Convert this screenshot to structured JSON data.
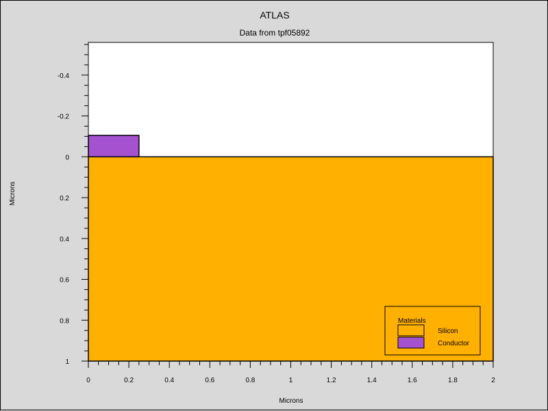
{
  "chart_data": {
    "type": "heatmap",
    "title": "ATLAS",
    "subtitle": "Data from tpf05892",
    "xlabel": "Microns",
    "ylabel": "Microns",
    "xlim": [
      0,
      2
    ],
    "ylim": [
      -0.56,
      1
    ],
    "y_inverted": true,
    "x_ticks": [
      "0",
      "0.2",
      "0.4",
      "0.6",
      "0.8",
      "1",
      "1.2",
      "1.4",
      "1.6",
      "1.8",
      "2"
    ],
    "x_tick_values": [
      0,
      0.2,
      0.4,
      0.6,
      0.8,
      1,
      1.2,
      1.4,
      1.6,
      1.8,
      2
    ],
    "y_ticks": [
      "-0.4",
      "-0.2",
      "0",
      "0.2",
      "0.4",
      "0.6",
      "0.8",
      "1"
    ],
    "y_tick_values": [
      -0.4,
      -0.2,
      0,
      0.2,
      0.4,
      0.6,
      0.8,
      1
    ],
    "regions": [
      {
        "material": "Silicon",
        "x": [
          0,
          2
        ],
        "y": [
          0,
          1
        ],
        "color": "#ffb000"
      },
      {
        "material": "Conductor",
        "x": [
          0,
          0.25
        ],
        "y": [
          -0.105,
          0
        ],
        "color": "#a452d0"
      }
    ],
    "legend": {
      "title": "Materials",
      "position": "bottom-right",
      "items": [
        {
          "label": "Silicon",
          "color": "#ffb000"
        },
        {
          "label": "Conductor",
          "color": "#a452d0"
        }
      ]
    },
    "background_color": "#ffffff",
    "frame_color": "#d9d9d9"
  }
}
